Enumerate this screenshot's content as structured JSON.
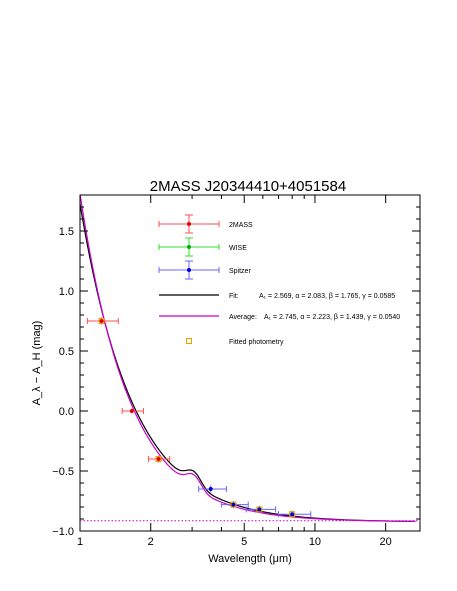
{
  "chart_data": {
    "type": "scatter",
    "title": "2MASS J20344410+4051584",
    "xlabel": "Wavelength (μm)",
    "ylabel": "A_λ − A_H (mag)",
    "xscale": "log",
    "xlim": [
      1,
      28
    ],
    "ylim": [
      -1.0,
      1.8
    ],
    "grid": false,
    "legend_position": "inside-top-right",
    "x_ticks": [
      1,
      2,
      5,
      10,
      20
    ],
    "x_tick_labels": [
      "1",
      "2",
      "5",
      "10",
      "20"
    ],
    "y_ticks": [
      1.5,
      1.0,
      0.5,
      0.0,
      -0.5,
      -1.0
    ],
    "y_tick_labels": [
      "1.5",
      "1.0",
      "0.5",
      "0.0",
      "−0.5",
      "−1.0"
    ],
    "series": [
      {
        "name": "2MASS",
        "color": "#ff4d4d",
        "marker_color": "#e00000",
        "points": [
          {
            "x": 1.235,
            "y": 0.75,
            "xerr": [
              0.16,
              0.22
            ],
            "yerr": 0.03
          },
          {
            "x": 1.662,
            "y": 0.0,
            "xerr": [
              0.15,
              0.2
            ],
            "yerr": 0.02
          },
          {
            "x": 2.159,
            "y": -0.4,
            "xerr": [
              0.2,
              0.25
            ],
            "yerr": 0.03
          }
        ]
      },
      {
        "name": "WISE",
        "color": "#33dd33",
        "marker_color": "#00aa00",
        "points": []
      },
      {
        "name": "Spitzer",
        "color": "#6666ff",
        "marker_color": "#0000cc",
        "points": [
          {
            "x": 3.6,
            "y": -0.65,
            "xerr": [
              0.4,
              0.6
            ],
            "yerr": 0.03
          },
          {
            "x": 4.5,
            "y": -0.78,
            "xerr": [
              0.5,
              0.7
            ],
            "yerr": 0.03
          },
          {
            "x": 5.8,
            "y": -0.82,
            "xerr": [
              0.7,
              1.0
            ],
            "yerr": 0.03
          },
          {
            "x": 8.0,
            "y": -0.86,
            "xerr": [
              1.0,
              1.6
            ],
            "yerr": 0.03
          }
        ]
      },
      {
        "name": "Fitted photometry",
        "color": "#e8a000",
        "marker": "open-square",
        "points": [
          {
            "x": 1.235,
            "y": 0.75
          },
          {
            "x": 2.159,
            "y": -0.4
          },
          {
            "x": 4.5,
            "y": -0.78
          },
          {
            "x": 5.8,
            "y": -0.82
          },
          {
            "x": 8.0,
            "y": -0.86
          }
        ]
      }
    ],
    "curves": [
      {
        "name": "Fit",
        "params_text": "A₁ = 2.569, α = 2.083, β = 1.765, γ = 0.0585",
        "color": "#000000",
        "A1": 2.569,
        "alpha": 2.083,
        "beta": 1.765,
        "gamma": 0.0585
      },
      {
        "name": "Average:",
        "params_text": "A₁ = 2.745, α = 2.223, β = 1.439, γ = 0.0540",
        "color": "#cc00cc",
        "A1": 2.745,
        "alpha": 2.223,
        "beta": 1.439,
        "gamma": 0.054
      }
    ],
    "asymptote": {
      "y": -0.915,
      "color": "#cc00cc",
      "style": "dotted"
    },
    "legend": [
      {
        "label": "2MASS",
        "kind": "errorpoint",
        "color": "#ff4d4d",
        "marker_color": "#e00000"
      },
      {
        "label": "WISE",
        "kind": "errorpoint",
        "color": "#33dd33",
        "marker_color": "#00aa00"
      },
      {
        "label": "Spitzer",
        "kind": "errorpoint",
        "color": "#6666ff",
        "marker_color": "#0000cc"
      },
      {
        "label": "Fit:",
        "kind": "line",
        "color": "#000000",
        "params": "A₁ = 2.569, α = 2.083, β = 1.765, γ = 0.0585"
      },
      {
        "label": "Average:",
        "kind": "line",
        "color": "#cc00cc",
        "params": "A₁ = 2.745, α = 2.223, β = 1.439, γ = 0.0540"
      },
      {
        "label": "Fitted photometry",
        "kind": "square",
        "color": "#e8a000"
      }
    ]
  }
}
